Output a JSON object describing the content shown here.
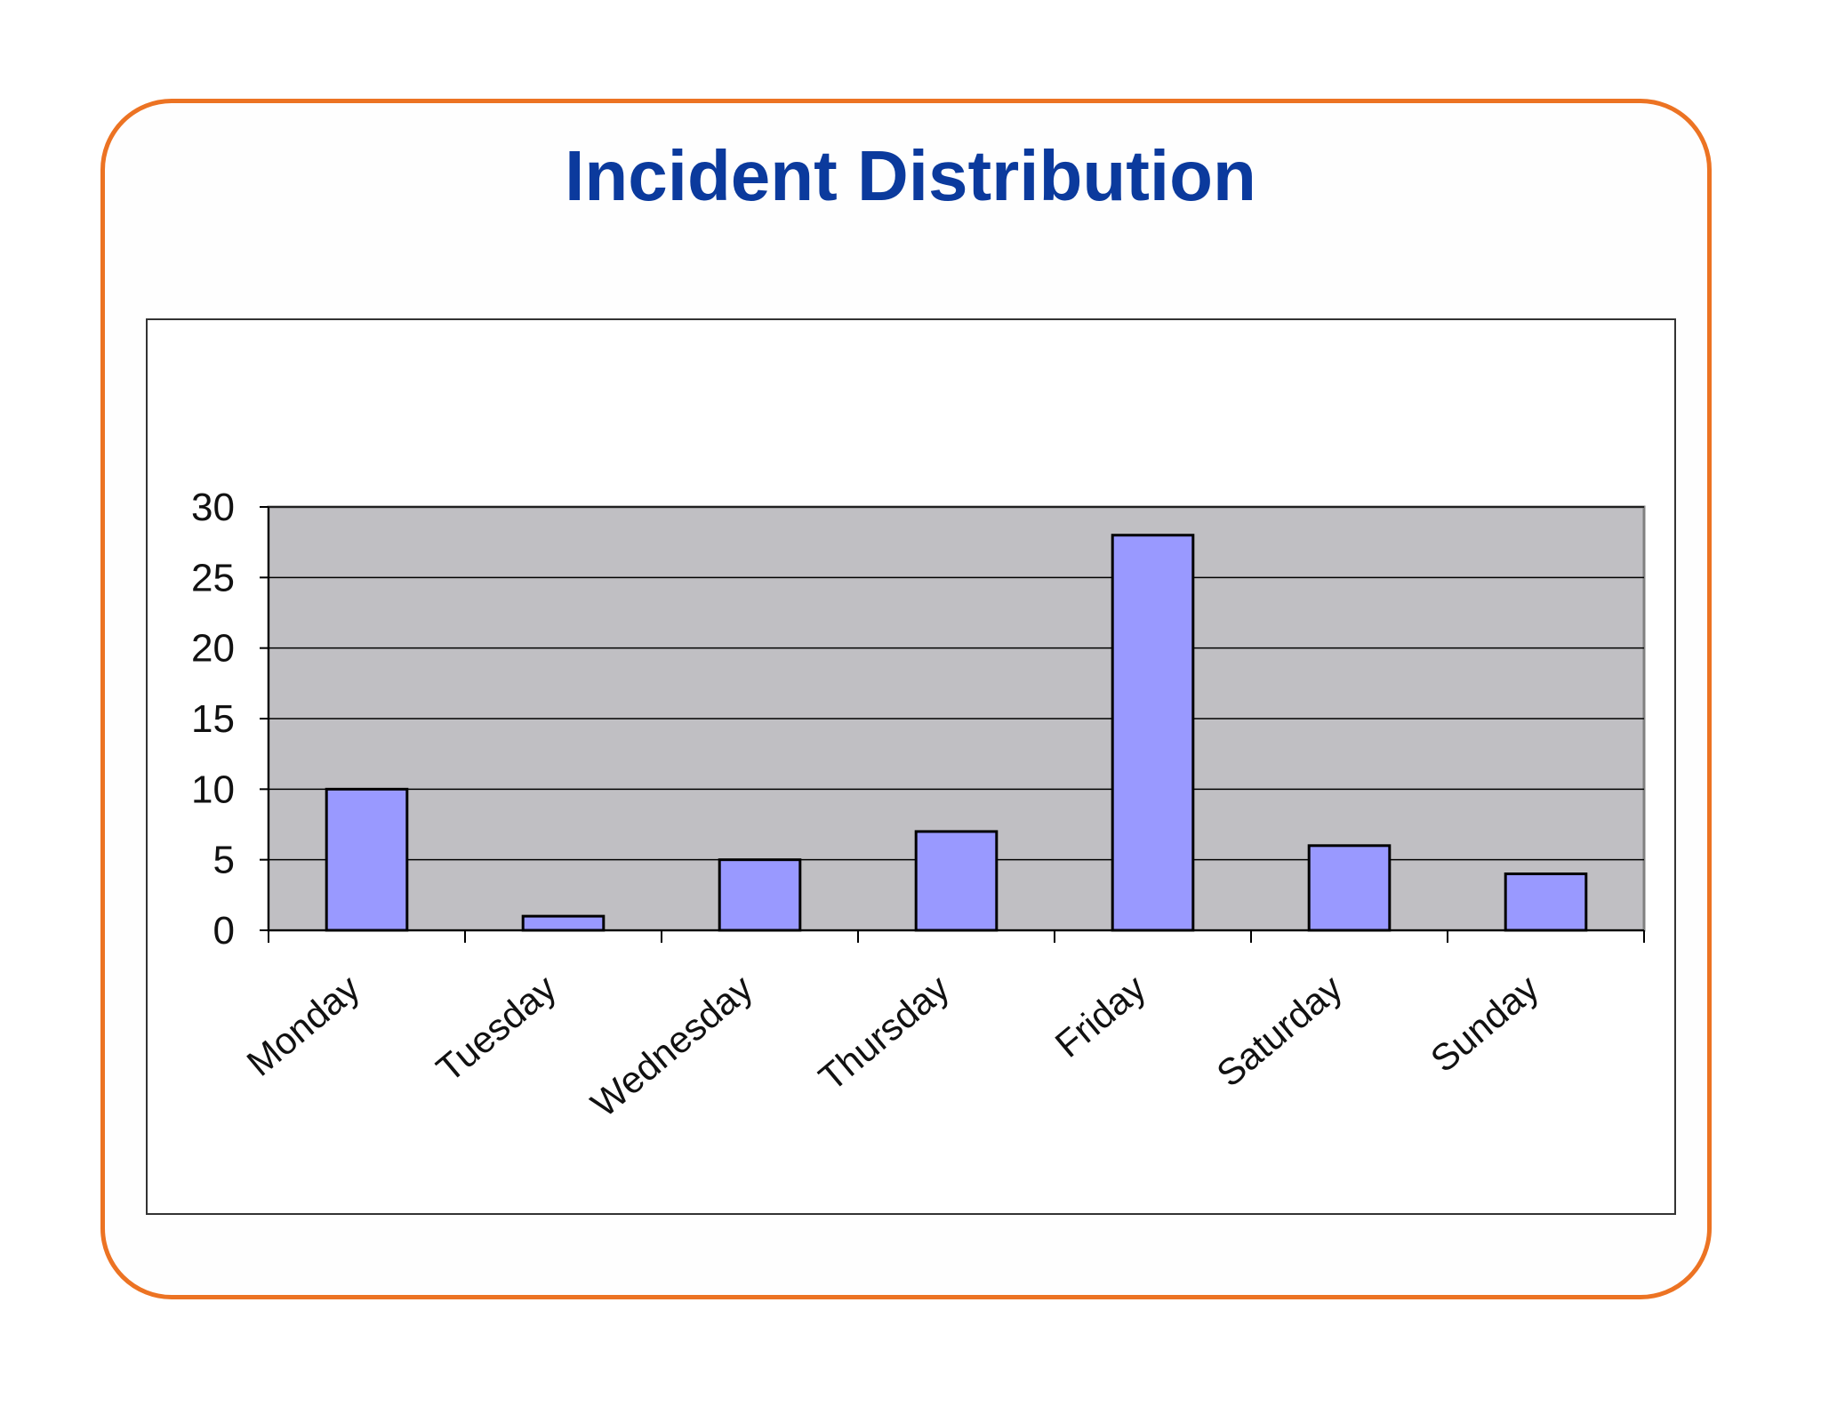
{
  "slide": {
    "title": "Incident Distribution",
    "frame_color": "#ec7323",
    "title_color": "#0b3a9d"
  },
  "chart_data": {
    "type": "bar",
    "title": "",
    "xlabel": "",
    "ylabel": "",
    "categories": [
      "Monday",
      "Tuesday",
      "Wednesday",
      "Thursday",
      "Friday",
      "Saturday",
      "Sunday"
    ],
    "values": [
      10,
      1,
      5,
      7,
      28,
      6,
      4
    ],
    "ylim": [
      0,
      30
    ],
    "yticks": [
      0,
      5,
      10,
      15,
      20,
      25,
      30
    ],
    "grid": true,
    "legend": "none",
    "plot_background": "#c0bfc3",
    "bar_color": "#9999ff",
    "bar_edge_color": "#000000"
  }
}
